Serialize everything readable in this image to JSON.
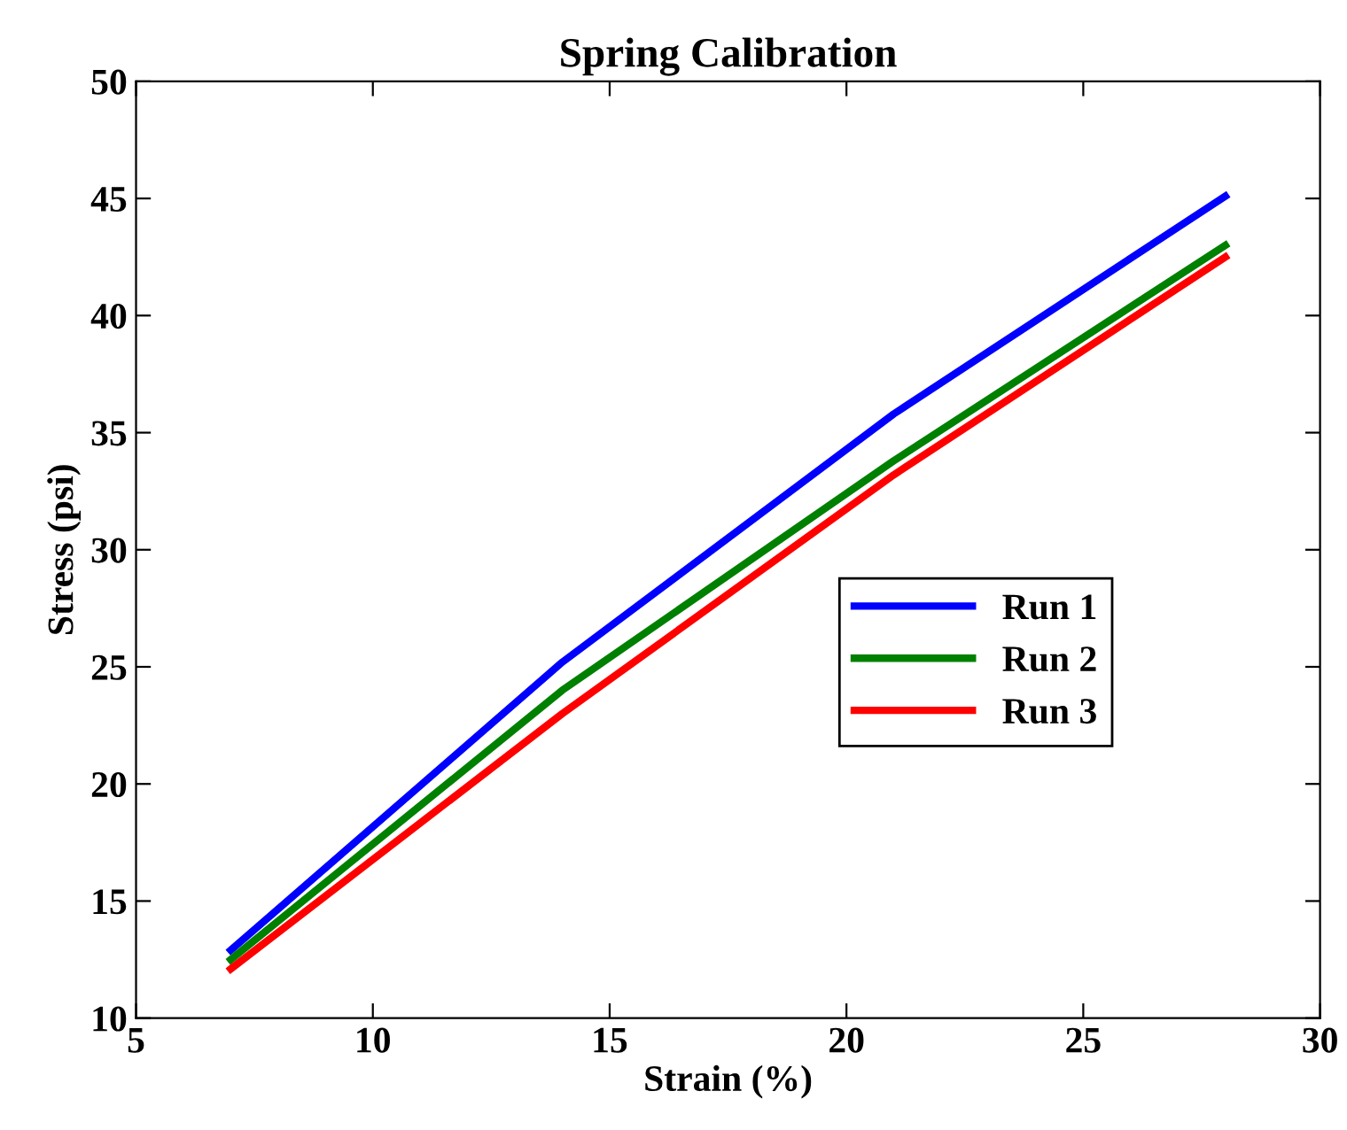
{
  "chart_data": {
    "type": "line",
    "title": "Spring Calibration",
    "xlabel": "Strain (%)",
    "ylabel": "Stress (psi)",
    "x": [
      7,
      14,
      21,
      28
    ],
    "series": [
      {
        "name": "Run 1",
        "color": "#0000ff",
        "values": [
          12.9,
          25.2,
          35.8,
          45.1
        ]
      },
      {
        "name": "Run 2",
        "color": "#008000",
        "values": [
          12.5,
          24.0,
          33.8,
          43.0
        ]
      },
      {
        "name": "Run 3",
        "color": "#ff0000",
        "values": [
          12.1,
          23.0,
          33.2,
          42.5
        ]
      }
    ],
    "xlim": [
      5,
      30
    ],
    "xticks": [
      5,
      10,
      15,
      20,
      25,
      30
    ],
    "ylim": [
      10,
      50
    ],
    "yticks": [
      10,
      15,
      20,
      25,
      30,
      35,
      40,
      45,
      50
    ],
    "grid": false,
    "legend": "right",
    "marker": "none",
    "line_style": "solid"
  }
}
